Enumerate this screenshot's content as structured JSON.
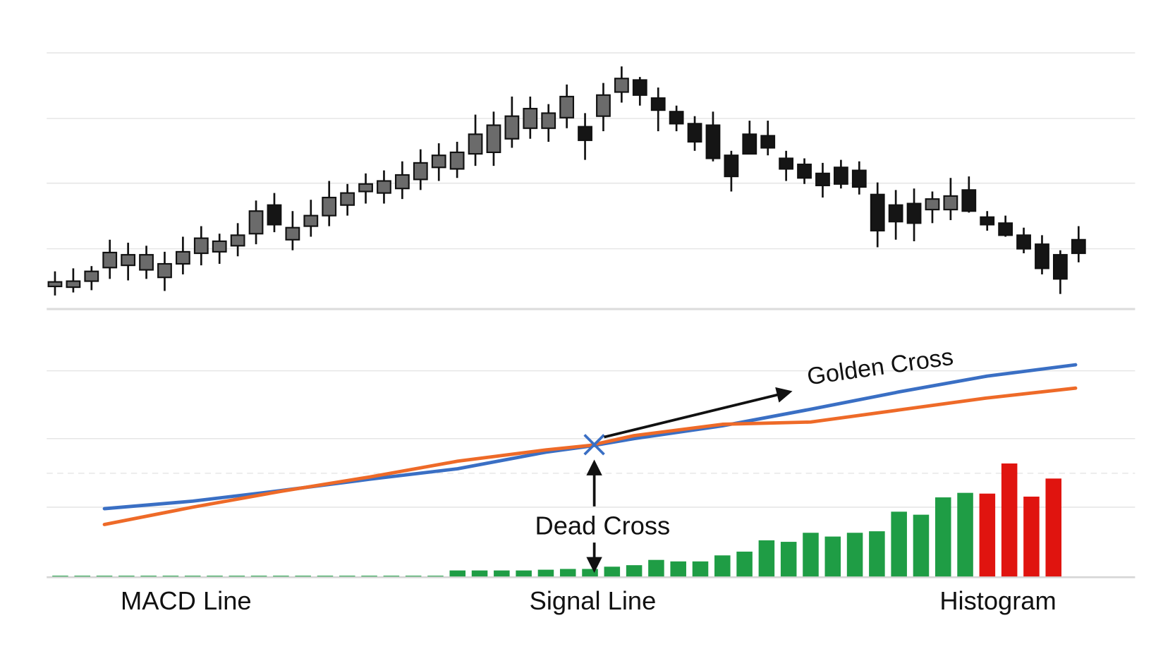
{
  "chart_data": [
    {
      "type": "candlestick",
      "xlim": [
        0,
        56
      ],
      "ylim": [
        0,
        340
      ],
      "up_color": "#6b6b6b",
      "down_color": "#151515",
      "open": [
        30,
        29,
        37,
        55,
        58,
        52,
        42,
        60,
        74,
        76,
        84,
        100,
        138,
        92,
        110,
        124,
        138,
        156,
        154,
        160,
        172,
        188,
        186,
        206,
        208,
        226,
        240,
        240,
        254,
        242,
        256,
        288,
        304,
        280,
        262,
        246,
        244,
        204,
        232,
        230,
        200,
        192,
        180,
        188,
        184,
        152,
        138,
        140,
        132,
        132,
        158,
        122,
        114,
        98,
        86,
        72,
        92
      ],
      "high": [
        50,
        54,
        57,
        92,
        88,
        84,
        76,
        96,
        110,
        100,
        114,
        144,
        154,
        130,
        145,
        170,
        166,
        180,
        184,
        196,
        212,
        220,
        222,
        258,
        262,
        282,
        282,
        272,
        298,
        260,
        300,
        322,
        308,
        294,
        270,
        256,
        262,
        210,
        250,
        250,
        210,
        200,
        194,
        198,
        196,
        168,
        158,
        160,
        156,
        174,
        176,
        130,
        124,
        108,
        98,
        78,
        110
      ],
      "low": [
        18,
        22,
        25,
        40,
        38,
        40,
        24,
        46,
        58,
        60,
        70,
        86,
        102,
        78,
        96,
        110,
        124,
        140,
        140,
        146,
        158,
        170,
        174,
        190,
        190,
        214,
        226,
        222,
        240,
        198,
        236,
        274,
        270,
        236,
        236,
        210,
        196,
        156,
        206,
        204,
        170,
        166,
        148,
        160,
        152,
        82,
        92,
        90,
        114,
        118,
        128,
        104,
        96,
        74,
        46,
        20,
        62
      ],
      "close": [
        36,
        37,
        50,
        75,
        72,
        72,
        60,
        76,
        94,
        90,
        98,
        130,
        112,
        108,
        124,
        148,
        154,
        166,
        170,
        178,
        194,
        204,
        208,
        232,
        244,
        256,
        266,
        260,
        282,
        224,
        284,
        306,
        284,
        264,
        246,
        222,
        200,
        176,
        206,
        214,
        186,
        174,
        164,
        166,
        162,
        104,
        116,
        114,
        146,
        150,
        130,
        112,
        98,
        80,
        54,
        40,
        74
      ]
    },
    {
      "type": "macd",
      "xlim": [
        0,
        46
      ],
      "ylim": [
        0,
        340
      ],
      "series": [
        {
          "name": "MACD Line",
          "type": "line",
          "color": "#3a6fc4",
          "x": [
            2,
            6,
            10,
            14,
            18,
            22,
            24,
            26,
            30,
            34,
            38,
            42,
            46
          ],
          "values": [
            90,
            100,
            114,
            129,
            143,
            165,
            173,
            183,
            200,
            222,
            245,
            266,
            281
          ]
        },
        {
          "name": "Signal Line",
          "type": "line",
          "color": "#ee6a28",
          "x": [
            2,
            6,
            10,
            14,
            18,
            22,
            24,
            26,
            30,
            34,
            38,
            42,
            46
          ],
          "values": [
            69,
            92,
            113,
            132,
            153,
            168,
            174,
            187,
            202,
            205,
            221,
            237,
            250
          ]
        },
        {
          "name": "Histogram",
          "type": "bar",
          "x": [
            0,
            1,
            2,
            3,
            4,
            5,
            6,
            7,
            8,
            9,
            10,
            11,
            12,
            13,
            14,
            15,
            16,
            17,
            18,
            19,
            20,
            21,
            22,
            23,
            24,
            25,
            26,
            27,
            28,
            29,
            30,
            31,
            32,
            33,
            34,
            35,
            36,
            37,
            38,
            39,
            40,
            41,
            42,
            43,
            44,
            45
          ],
          "values": [
            1,
            1,
            1,
            1,
            1,
            1,
            1,
            1,
            1,
            1,
            1,
            1,
            1,
            1,
            1,
            1,
            1,
            1,
            8,
            8,
            8,
            8,
            9,
            10,
            10,
            13,
            15,
            22,
            20,
            20,
            28,
            33,
            48,
            46,
            58,
            53,
            58,
            60,
            86,
            82,
            105,
            111,
            110,
            150,
            106,
            130
          ],
          "colors": [
            "#1f9d45",
            "#1f9d45",
            "#1f9d45",
            "#1f9d45",
            "#1f9d45",
            "#1f9d45",
            "#1f9d45",
            "#1f9d45",
            "#1f9d45",
            "#1f9d45",
            "#1f9d45",
            "#1f9d45",
            "#1f9d45",
            "#1f9d45",
            "#1f9d45",
            "#1f9d45",
            "#1f9d45",
            "#1f9d45",
            "#1f9d45",
            "#1f9d45",
            "#1f9d45",
            "#1f9d45",
            "#1f9d45",
            "#1f9d45",
            "#1f9d45",
            "#1f9d45",
            "#1f9d45",
            "#1f9d45",
            "#1f9d45",
            "#1f9d45",
            "#1f9d45",
            "#1f9d45",
            "#1f9d45",
            "#1f9d45",
            "#1f9d45",
            "#1f9d45",
            "#1f9d45",
            "#1f9d45",
            "#1f9d45",
            "#1f9d45",
            "#1f9d45",
            "#1f9d45",
            "#e0140f",
            "#e0140f",
            "#e0140f",
            "#e0140f"
          ]
        }
      ],
      "annotations": [
        "Golden Cross",
        "Dead Cross"
      ]
    }
  ]
}
